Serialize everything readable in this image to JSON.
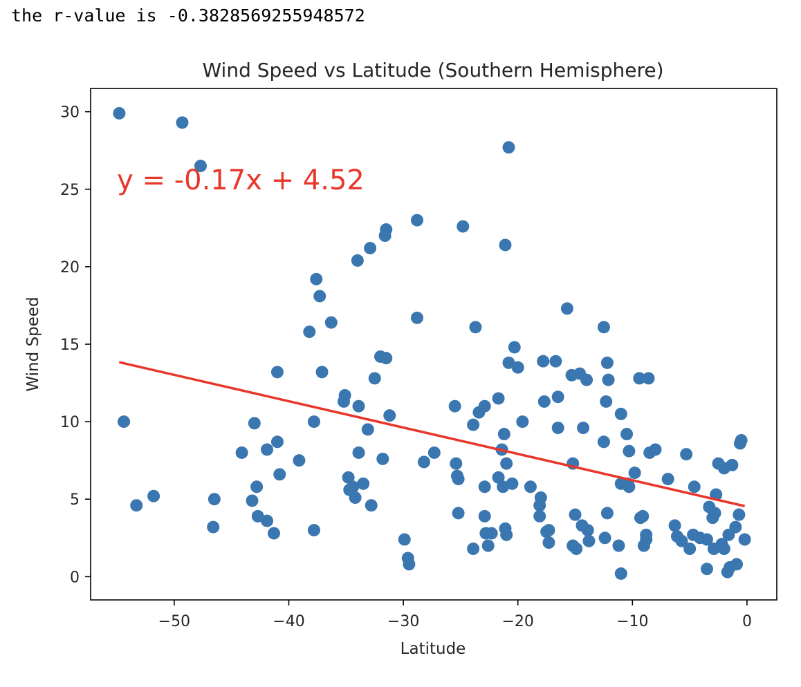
{
  "output": {
    "text": "the r-value is -0.3828569255948572"
  },
  "chart_data": {
    "type": "scatter",
    "title": "Wind Speed vs Latitude (Southern Hemisphere)",
    "xlabel": "Latitude",
    "ylabel": "Wind Speed",
    "xlim": [
      -57.3,
      2.6
    ],
    "ylim": [
      -1.5,
      31.5
    ],
    "xticks": [
      -50,
      -40,
      -30,
      -20,
      -10,
      0
    ],
    "xtick_labels": [
      "−50",
      "−40",
      "−30",
      "−20",
      "−10",
      "0"
    ],
    "yticks": [
      0,
      5,
      10,
      15,
      20,
      25,
      30
    ],
    "ytick_labels": [
      "0",
      "5",
      "10",
      "15",
      "20",
      "25",
      "30"
    ],
    "grid": false,
    "marker_color": "#3a76af",
    "line_color": "#e8362b",
    "regression": {
      "slope": -0.17,
      "intercept": 4.52,
      "x_range": [
        -54.8,
        -0.2
      ],
      "equation": "y = -0.17x + 4.52",
      "annotation_position": [
        -55,
        25
      ]
    },
    "points": [
      [
        -54.8,
        29.9
      ],
      [
        -49.3,
        29.3
      ],
      [
        -47.7,
        26.5
      ],
      [
        -54.4,
        10.0
      ],
      [
        -53.3,
        4.6
      ],
      [
        -51.8,
        5.2
      ],
      [
        -46.5,
        5.0
      ],
      [
        -46.6,
        3.2
      ],
      [
        -44.1,
        8.0
      ],
      [
        -43.2,
        4.9
      ],
      [
        -43.0,
        9.9
      ],
      [
        -42.8,
        5.8
      ],
      [
        -42.7,
        3.9
      ],
      [
        -41.9,
        8.2
      ],
      [
        -41.9,
        3.6
      ],
      [
        -41.3,
        2.8
      ],
      [
        -41.0,
        8.7
      ],
      [
        -41.0,
        13.2
      ],
      [
        -40.8,
        6.6
      ],
      [
        -39.1,
        7.5
      ],
      [
        -38.2,
        15.8
      ],
      [
        -37.8,
        10.0
      ],
      [
        -37.8,
        3.0
      ],
      [
        -37.6,
        19.2
      ],
      [
        -37.3,
        18.1
      ],
      [
        -37.1,
        13.2
      ],
      [
        -36.3,
        16.4
      ],
      [
        -35.2,
        11.3
      ],
      [
        -35.1,
        11.7
      ],
      [
        -34.8,
        6.4
      ],
      [
        -34.7,
        5.6
      ],
      [
        -34.4,
        5.8
      ],
      [
        -34.2,
        5.1
      ],
      [
        -34.0,
        20.4
      ],
      [
        -33.9,
        8.0
      ],
      [
        -33.9,
        11.0
      ],
      [
        -33.5,
        6.0
      ],
      [
        -33.1,
        9.5
      ],
      [
        -32.9,
        21.2
      ],
      [
        -32.8,
        4.6
      ],
      [
        -32.5,
        12.8
      ],
      [
        -32.0,
        14.2
      ],
      [
        -31.8,
        7.6
      ],
      [
        -31.6,
        22.0
      ],
      [
        -31.5,
        22.4
      ],
      [
        -31.5,
        14.1
      ],
      [
        -31.2,
        10.4
      ],
      [
        -29.9,
        2.4
      ],
      [
        -29.6,
        1.2
      ],
      [
        -29.5,
        0.8
      ],
      [
        -28.8,
        23.0
      ],
      [
        -28.8,
        16.7
      ],
      [
        -28.2,
        7.4
      ],
      [
        -27.3,
        8.0
      ],
      [
        -25.5,
        11.0
      ],
      [
        -25.4,
        7.3
      ],
      [
        -25.3,
        6.5
      ],
      [
        -25.2,
        6.3
      ],
      [
        -25.2,
        4.1
      ],
      [
        -24.8,
        22.6
      ],
      [
        -23.9,
        1.8
      ],
      [
        -23.9,
        9.8
      ],
      [
        -23.7,
        16.1
      ],
      [
        -23.4,
        10.6
      ],
      [
        -22.9,
        11.0
      ],
      [
        -22.9,
        5.8
      ],
      [
        -22.9,
        3.9
      ],
      [
        -22.8,
        2.8
      ],
      [
        -22.6,
        2.0
      ],
      [
        -22.3,
        2.8
      ],
      [
        -21.7,
        11.5
      ],
      [
        -21.7,
        6.4
      ],
      [
        -21.4,
        8.2
      ],
      [
        -21.3,
        5.8
      ],
      [
        -21.2,
        9.2
      ],
      [
        -21.1,
        21.4
      ],
      [
        -21.1,
        3.1
      ],
      [
        -21.0,
        2.7
      ],
      [
        -21.0,
        7.3
      ],
      [
        -20.8,
        27.7
      ],
      [
        -20.8,
        13.8
      ],
      [
        -20.5,
        6.0
      ],
      [
        -20.3,
        14.8
      ],
      [
        -20.0,
        13.5
      ],
      [
        -19.6,
        10.0
      ],
      [
        -18.9,
        5.8
      ],
      [
        -18.0,
        5.1
      ],
      [
        -18.1,
        4.6
      ],
      [
        -18.1,
        3.9
      ],
      [
        -17.8,
        13.9
      ],
      [
        -17.7,
        11.3
      ],
      [
        -17.5,
        2.9
      ],
      [
        -17.3,
        3.0
      ],
      [
        -17.3,
        2.2
      ],
      [
        -16.7,
        13.9
      ],
      [
        -16.5,
        11.6
      ],
      [
        -16.5,
        9.6
      ],
      [
        -15.7,
        17.3
      ],
      [
        -15.3,
        13.0
      ],
      [
        -15.2,
        7.3
      ],
      [
        -15.2,
        2.0
      ],
      [
        -15.0,
        4.0
      ],
      [
        -14.9,
        1.8
      ],
      [
        -14.6,
        13.1
      ],
      [
        -14.4,
        3.3
      ],
      [
        -14.3,
        9.6
      ],
      [
        -14.0,
        12.7
      ],
      [
        -13.9,
        3.0
      ],
      [
        -13.8,
        2.3
      ],
      [
        -12.5,
        16.1
      ],
      [
        -12.5,
        8.7
      ],
      [
        -12.4,
        2.5
      ],
      [
        -12.3,
        11.3
      ],
      [
        -12.2,
        13.8
      ],
      [
        -12.1,
        12.7
      ],
      [
        -12.2,
        4.1
      ],
      [
        -11.2,
        2.0
      ],
      [
        -11.0,
        10.5
      ],
      [
        -11.0,
        6.0
      ],
      [
        -11.0,
        0.2
      ],
      [
        -10.5,
        9.2
      ],
      [
        -10.4,
        6.0
      ],
      [
        -10.3,
        8.1
      ],
      [
        -10.3,
        5.8
      ],
      [
        -9.8,
        6.7
      ],
      [
        -9.4,
        12.8
      ],
      [
        -9.3,
        3.8
      ],
      [
        -9.1,
        3.9
      ],
      [
        -9.0,
        2.0
      ],
      [
        -8.8,
        2.4
      ],
      [
        -8.8,
        2.7
      ],
      [
        -8.6,
        12.8
      ],
      [
        -8.5,
        8.0
      ],
      [
        -8.0,
        8.2
      ],
      [
        -6.9,
        6.3
      ],
      [
        -6.3,
        3.3
      ],
      [
        -6.1,
        2.6
      ],
      [
        -5.7,
        2.3
      ],
      [
        -5.3,
        7.9
      ],
      [
        -5.0,
        1.8
      ],
      [
        -4.7,
        2.7
      ],
      [
        -4.6,
        5.8
      ],
      [
        -4.1,
        2.5
      ],
      [
        -3.5,
        2.4
      ],
      [
        -3.5,
        0.5
      ],
      [
        -3.3,
        4.5
      ],
      [
        -3.0,
        3.8
      ],
      [
        -2.8,
        4.1
      ],
      [
        -2.9,
        1.8
      ],
      [
        -2.7,
        5.3
      ],
      [
        -2.5,
        7.3
      ],
      [
        -2.2,
        2.1
      ],
      [
        -2.0,
        7.0
      ],
      [
        -2.0,
        1.8
      ],
      [
        -1.7,
        0.3
      ],
      [
        -1.5,
        0.6
      ],
      [
        -1.6,
        2.7
      ],
      [
        -1.3,
        7.2
      ],
      [
        -1.0,
        3.2
      ],
      [
        -0.9,
        0.8
      ],
      [
        -0.7,
        4.0
      ],
      [
        -0.6,
        8.6
      ],
      [
        -0.5,
        8.8
      ],
      [
        -0.2,
        2.4
      ]
    ]
  }
}
